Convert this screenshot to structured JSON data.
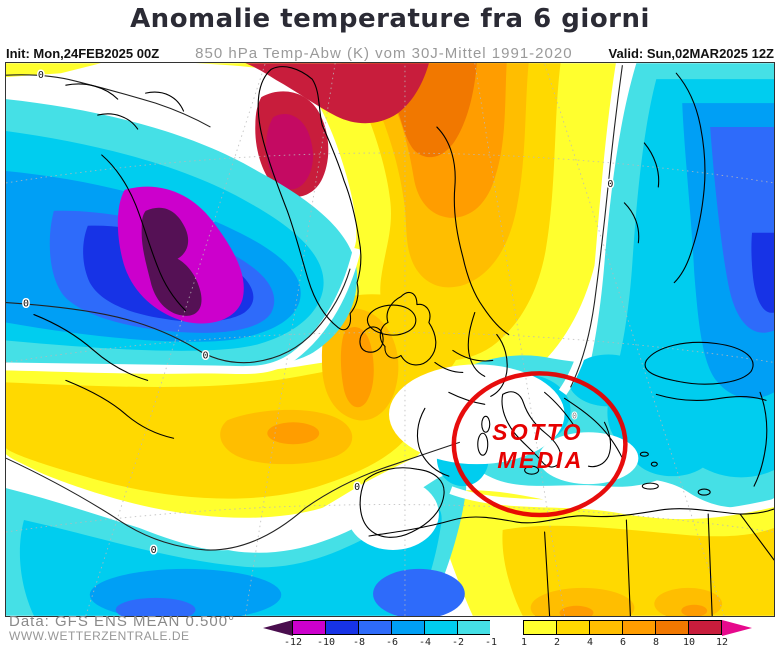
{
  "title": "Anomalie temperature fra 6 giorni",
  "header": {
    "init": "Init: Mon,24FEB2025 00Z",
    "subtitle": "850 hPa Temp-Abw (K) vom 30J-Mittel 1991-2020",
    "valid": "Valid: Sun,02MAR2025 12Z"
  },
  "annotation": {
    "line1": "SOTTO",
    "line2": "MEDIA",
    "color": "#e60000"
  },
  "footer": {
    "source": "Data: GFS ENS MEAN 0.500°",
    "site": "WWW.WETTERZENTRALE.DE"
  },
  "map_labels": {
    "zeros": [
      "0",
      "0",
      "0",
      "0",
      "0",
      "0"
    ],
    "minor": "0"
  },
  "palette": {
    "cold1": "#45E0E6",
    "cold2": "#00CDEF",
    "cold3": "#009FF5",
    "cold4": "#2E6BFA",
    "cold5": "#1733E6",
    "cold6": "#CC00CC",
    "cold7": "#551155",
    "warm1": "#FFFF2E",
    "warm2": "#FFD900",
    "warm3": "#FFBE00",
    "warm4": "#FF9D00",
    "warm5": "#F17800",
    "warm6": "#C81D3C",
    "warm7": "#C40A62",
    "white": "#FFFFFF",
    "coast": "#000000",
    "graticule": "#b9b9b9"
  },
  "colorbar": {
    "boundary_labels": [
      "-12",
      "-10",
      "-8",
      "-6",
      "-4",
      "-2",
      "-1",
      "1",
      "2",
      "4",
      "6",
      "8",
      "10",
      "12"
    ],
    "segment_colors": [
      "#CC00CC",
      "#1733E6",
      "#2E6BFA",
      "#009FF5",
      "#00CDEF",
      "#45E0E6",
      "#FFFFFF",
      "#FFFF2E",
      "#FFD900",
      "#FFBE00",
      "#FF9D00",
      "#F17800",
      "#C81D3C"
    ],
    "left_arrow_color": "#4A0E4E",
    "right_arrow_color": "#E6098C"
  }
}
